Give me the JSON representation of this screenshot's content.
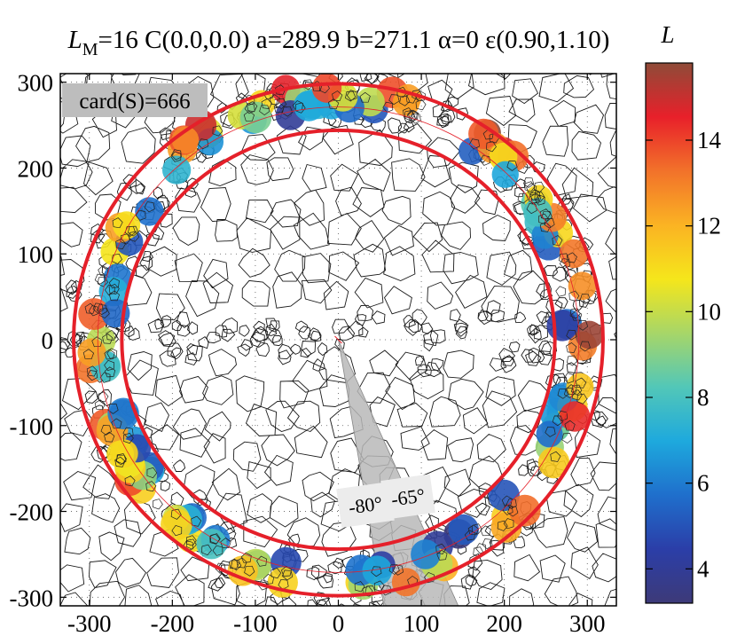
{
  "chart_data": {
    "type": "scatter",
    "title": {
      "prefix": "L",
      "sub": "M",
      "text": "=16 C(0.0,0.0) a=289.9 b=271.1 α=0 ε(0.90,1.10)"
    },
    "colorbar_label": "L",
    "badge": "card(S)=666",
    "xlim": [
      -335,
      335
    ],
    "ylim": [
      -310,
      310
    ],
    "xticks": [
      -300,
      -200,
      -100,
      0,
      100,
      200,
      300
    ],
    "yticks": [
      300,
      200,
      100,
      0,
      -100,
      -200,
      -300
    ],
    "xtick_labels": [
      "-300",
      "-200",
      "-100",
      "0",
      "100",
      "200",
      "300"
    ],
    "ytick_labels": [
      "300",
      "200",
      "100",
      "0",
      "-100",
      "-200",
      "-300"
    ],
    "colorbar_range": [
      3.2,
      15.8
    ],
    "colorbar_ticks": [
      4,
      6,
      8,
      10,
      12,
      14
    ],
    "colorbar_tick_labels": [
      "4",
      "6",
      "8",
      "10",
      "12",
      "14"
    ],
    "colormap": [
      "#3d3a78",
      "#2b3ea8",
      "#1f6fcc",
      "#1ea9dd",
      "#52c7b8",
      "#a7d668",
      "#f5e61b",
      "#fbb323",
      "#f2722a",
      "#e8202a",
      "#8e4b38"
    ],
    "ellipses": [
      {
        "name": "outer",
        "rx": 318.9,
        "ry": 298.2,
        "color": "#e5202a"
      },
      {
        "name": "inner",
        "rx": 260.9,
        "ry": 244.0,
        "color": "#e5202a"
      },
      {
        "name": "reference",
        "rx": 289.9,
        "ry": 271.1,
        "color": "#e5202a"
      }
    ],
    "sectors": [
      {
        "angle_deg": -80,
        "label": "-80°"
      },
      {
        "angle_deg": -65,
        "label": "-65°"
      }
    ],
    "sector_radius": 360,
    "grid": true,
    "legend_position": "none"
  }
}
